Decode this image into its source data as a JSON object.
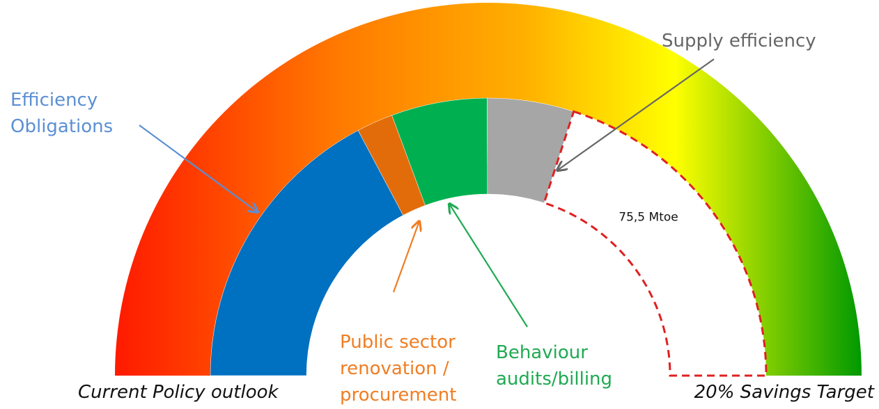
{
  "chart_data": {
    "type": "gauge",
    "categories": [
      "Efficiency\nObligations",
      "Public sector\nrenovation /\nprocurement",
      "Behaviour\naudits/billing",
      "Supply efficiency",
      null
    ],
    "values": [
      65,
      8,
      21,
      19,
      75.5
    ],
    "value_labels": [
      null,
      null,
      null,
      null,
      "75,5 Mtoe"
    ],
    "colors": [
      "#0070c0",
      "#e36c0a",
      "#00b050",
      "#a6a6a6",
      "#ffffff"
    ],
    "label_colors": [
      "#5b8fd4",
      "#f07d22",
      "#1faa52",
      "#666666",
      null
    ],
    "gap_stroke": "#e02020",
    "band_colors": [
      "#ff1a00",
      "#ff7a00",
      "#ffb000",
      "#ffff00",
      "#009900"
    ],
    "start_label": "Current Policy outlook",
    "end_label": "20% Savings Target"
  }
}
